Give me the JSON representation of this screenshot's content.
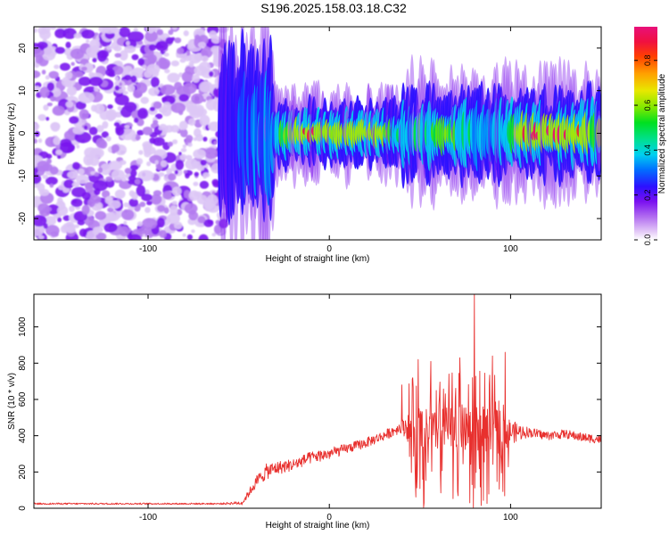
{
  "title": "S196.2025.158.03.18.C32",
  "chart_data": [
    {
      "type": "heatmap",
      "xlabel": "Height of straight line (km)",
      "ylabel": "Frequency (Hz)",
      "xlim": [
        -163,
        150
      ],
      "ylim": [
        -25,
        25
      ],
      "x_ticks": [
        -100,
        0,
        100
      ],
      "y_ticks": [
        -20,
        -10,
        0,
        10,
        20
      ],
      "description_of_pattern": "noise region for x < -60 km; narrow band near 0 Hz for x > -60 km",
      "band": {
        "noise_until_km": -60,
        "center_freq_hz": 0,
        "x": [
          -60,
          -50,
          -40,
          -30,
          -20,
          -10,
          0,
          10,
          20,
          30,
          40,
          50,
          60,
          70,
          80,
          90,
          100,
          110,
          120,
          130,
          140,
          150
        ],
        "peak_amplitude": [
          0.25,
          0.3,
          0.35,
          0.4,
          0.8,
          0.95,
          0.7,
          0.85,
          0.9,
          0.8,
          0.45,
          0.5,
          0.55,
          0.6,
          0.45,
          0.4,
          0.55,
          0.95,
          0.95,
          0.95,
          0.8,
          0.6
        ]
      },
      "colorbar": {
        "label": "Normalized spectral amplitude",
        "min": 0.0,
        "max": 0.95,
        "ticks": [
          0.0,
          0.2,
          0.4,
          0.6,
          0.8
        ]
      }
    },
    {
      "type": "line",
      "xlabel": "Height of straight line (km)",
      "ylabel": "SNR (10 * v/v)",
      "xlim": [
        -163,
        150
      ],
      "ylim": [
        0,
        1180
      ],
      "x_ticks": [
        -100,
        0,
        100
      ],
      "y_ticks": [
        0,
        200,
        400,
        600,
        800,
        1000
      ],
      "color": "#e8302e",
      "envelope": {
        "x": [
          -163,
          -60,
          -48,
          -40,
          -35,
          -30,
          -20,
          -10,
          0,
          10,
          20,
          30,
          40,
          45,
          50,
          55,
          60,
          65,
          70,
          75,
          80,
          85,
          90,
          95,
          100,
          110,
          120,
          130,
          140,
          150
        ],
        "y": [
          25,
          25,
          30,
          150,
          200,
          220,
          240,
          280,
          300,
          330,
          360,
          400,
          450,
          450,
          430,
          420,
          420,
          440,
          420,
          430,
          440,
          420,
          410,
          430,
          420,
          420,
          400,
          410,
          390,
          380
        ],
        "amp": [
          8,
          8,
          20,
          60,
          80,
          70,
          60,
          60,
          60,
          50,
          50,
          50,
          60,
          200,
          250,
          220,
          200,
          240,
          260,
          230,
          300,
          260,
          220,
          250,
          120,
          50,
          45,
          45,
          45,
          45
        ]
      },
      "peaks": [
        {
          "x": 40,
          "y": 680
        },
        {
          "x": 49,
          "y": 820
        },
        {
          "x": 56,
          "y": 810
        },
        {
          "x": 66,
          "y": 740
        },
        {
          "x": 72,
          "y": 830
        },
        {
          "x": 80,
          "y": 1180
        },
        {
          "x": 90,
          "y": 840
        },
        {
          "x": 97,
          "y": 860
        }
      ]
    }
  ]
}
